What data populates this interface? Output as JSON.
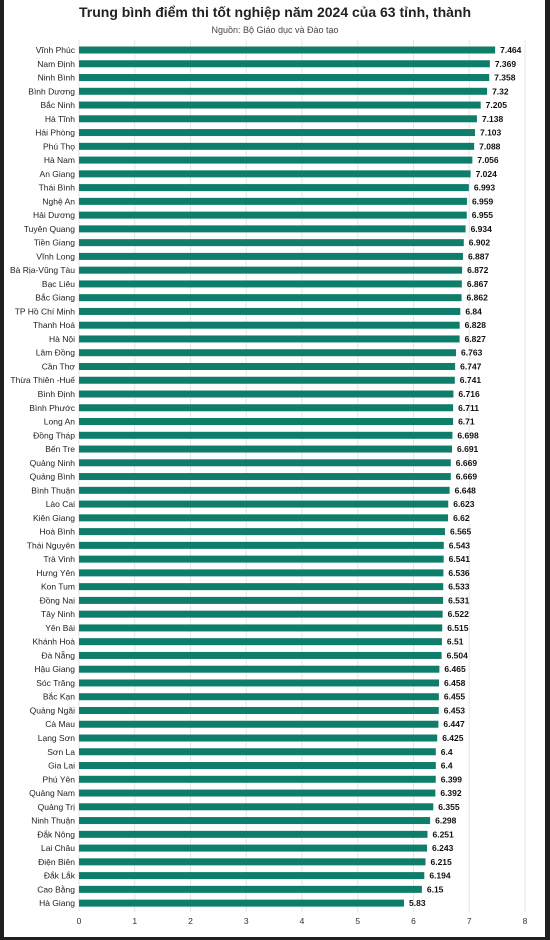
{
  "chart_data": {
    "type": "bar",
    "orientation": "horizontal",
    "title": "Trung bình điểm thi tốt nghiệp năm 2024 của 63 tỉnh, thành",
    "subtitle": "Nguồn: Bộ Giáo dục và Đào tạo",
    "xlim": [
      0,
      8
    ],
    "xticks": [
      "0",
      "1",
      "2",
      "3",
      "4",
      "5",
      "6",
      "7",
      "8"
    ],
    "grid": true,
    "bar_color": "#0e7d6a",
    "categories": [
      "Vĩnh Phúc",
      "Nam Định",
      "Ninh Bình",
      "Bình Dương",
      "Bắc Ninh",
      "Hà Tĩnh",
      "Hải Phòng",
      "Phú Thọ",
      "Hà Nam",
      "An Giang",
      "Thái Bình",
      "Nghệ An",
      "Hải Dương",
      "Tuyên Quang",
      "Tiền Giang",
      "Vĩnh Long",
      "Bà Rịa-Vũng Tàu",
      "Bạc Liêu",
      "Bắc Giang",
      "TP Hồ Chí Minh",
      "Thanh Hoá",
      "Hà Nội",
      "Lâm Đồng",
      "Cần Thơ",
      "Thừa Thiên -Huế",
      "Bình Định",
      "Bình Phước",
      "Long An",
      "Đồng Tháp",
      "Bến Tre",
      "Quảng Ninh",
      "Quảng Bình",
      "Bình Thuận",
      "Lào Cai",
      "Kiên Giang",
      "Hoà Bình",
      "Thái Nguyên",
      "Trà Vinh",
      "Hưng Yên",
      "Kon Tum",
      "Đồng Nai",
      "Tây Ninh",
      "Yên Bái",
      "Khánh Hoà",
      "Đà Nẵng",
      "Hậu Giang",
      "Sóc Trăng",
      "Bắc Kạn",
      "Quảng Ngãi",
      "Cà Mau",
      "Lạng Sơn",
      "Sơn La",
      "Gia Lai",
      "Phú Yên",
      "Quảng Nam",
      "Quảng Trị",
      "Ninh Thuận",
      "Đắk Nông",
      "Lai Châu",
      "Điện Biên",
      "Đắk Lắk",
      "Cao Bằng",
      "Hà Giang"
    ],
    "values": [
      7.464,
      7.369,
      7.358,
      7.32,
      7.205,
      7.138,
      7.103,
      7.088,
      7.056,
      7.024,
      6.993,
      6.959,
      6.955,
      6.934,
      6.902,
      6.887,
      6.872,
      6.867,
      6.862,
      6.84,
      6.828,
      6.827,
      6.763,
      6.747,
      6.741,
      6.716,
      6.711,
      6.71,
      6.698,
      6.691,
      6.669,
      6.669,
      6.648,
      6.623,
      6.62,
      6.565,
      6.543,
      6.541,
      6.536,
      6.533,
      6.531,
      6.522,
      6.515,
      6.51,
      6.504,
      6.465,
      6.458,
      6.455,
      6.453,
      6.447,
      6.425,
      6.4,
      6.4,
      6.399,
      6.392,
      6.355,
      6.298,
      6.251,
      6.243,
      6.215,
      6.194,
      6.15,
      5.83
    ],
    "value_labels": [
      "7.464",
      "7.369",
      "7.358",
      "7.32",
      "7.205",
      "7.138",
      "7.103",
      "7.088",
      "7.056",
      "7.024",
      "6.993",
      "6.959",
      "6.955",
      "6.934",
      "6.902",
      "6.887",
      "6.872",
      "6.867",
      "6.862",
      "6.84",
      "6.828",
      "6.827",
      "6.763",
      "6.747",
      "6.741",
      "6.716",
      "6.711",
      "6.71",
      "6.698",
      "6.691",
      "6.669",
      "6.669",
      "6.648",
      "6.623",
      "6.62",
      "6.565",
      "6.543",
      "6.541",
      "6.536",
      "6.533",
      "6.531",
      "6.522",
      "6.515",
      "6.51",
      "6.504",
      "6.465",
      "6.458",
      "6.455",
      "6.453",
      "6.447",
      "6.425",
      "6.4",
      "6.4",
      "6.399",
      "6.392",
      "6.355",
      "6.298",
      "6.251",
      "6.243",
      "6.215",
      "6.194",
      "6.15",
      "5.83"
    ]
  }
}
